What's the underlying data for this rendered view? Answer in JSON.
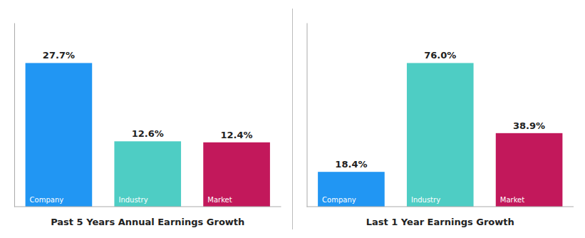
{
  "chart_data": [
    {
      "type": "bar",
      "title": "Past 5 Years Annual Earnings Growth",
      "categories": [
        "Company",
        "Industry",
        "Market"
      ],
      "values": [
        27.7,
        12.6,
        12.4
      ],
      "value_labels": [
        "27.7%",
        "12.6%",
        "12.4%"
      ],
      "colors": [
        "#2196f3",
        "#4ecdc4",
        "#c2185b"
      ],
      "ylim": [
        0,
        35.456
      ],
      "data_labels": true,
      "tick_labels": false
    },
    {
      "type": "bar",
      "title": "Last 1 Year Earnings Growth",
      "categories": [
        "Company",
        "Industry",
        "Market"
      ],
      "values": [
        18.4,
        76.0,
        38.9
      ],
      "value_labels": [
        "18.4%",
        "76.0%",
        "38.9%"
      ],
      "colors": [
        "#2196f3",
        "#4ecdc4",
        "#c2185b"
      ],
      "ylim": [
        0,
        97.28
      ],
      "data_labels": true,
      "tick_labels": false
    }
  ]
}
